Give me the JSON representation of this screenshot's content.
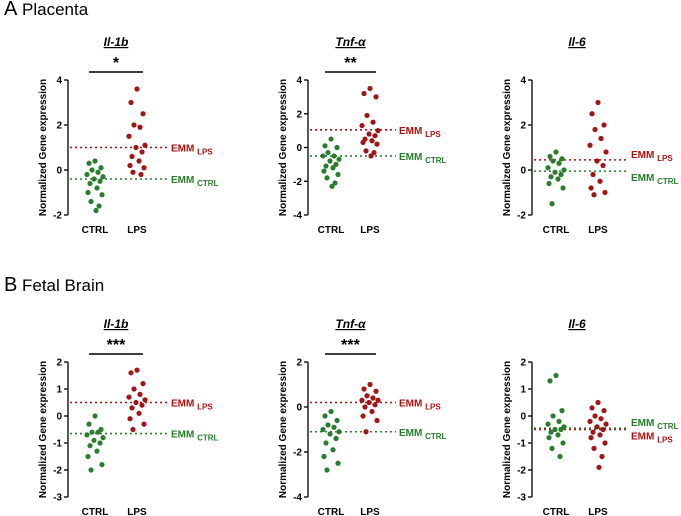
{
  "colors": {
    "ctrl": "#2a7d2e",
    "lps": "#a31515",
    "axis": "#000000"
  },
  "sections": [
    {
      "letter": "A",
      "title": "Placenta"
    },
    {
      "letter": "B",
      "title": "Fetal Brain"
    }
  ],
  "chart_data": [
    {
      "type": "scatter",
      "section": "Placenta",
      "title": "Il-1b",
      "ylabel": "Normalized Gene expression",
      "ylim": [
        -2,
        4
      ],
      "yticks": [
        -2,
        0,
        2,
        4
      ],
      "categories": [
        "CTRL",
        "LPS"
      ],
      "significance": "*",
      "emm": [
        {
          "label": "EMM",
          "sub": "LPS",
          "value": 1.0,
          "group": "lps"
        },
        {
          "label": "EMM",
          "sub": "CTRL",
          "value": -0.4,
          "group": "ctrl"
        }
      ],
      "series": [
        {
          "name": "CTRL",
          "values": [
            0.4,
            0.3,
            0.1,
            0.0,
            -0.1,
            -0.2,
            -0.3,
            -0.4,
            -0.5,
            -0.6,
            -0.8,
            -1.0,
            -1.1,
            -1.4,
            -1.6,
            -1.8
          ]
        },
        {
          "name": "LPS",
          "values": [
            3.6,
            3.0,
            2.5,
            2.0,
            1.9,
            1.5,
            1.1,
            1.0,
            0.8,
            0.6,
            0.4,
            0.2,
            0.1,
            -0.1,
            -0.2
          ]
        }
      ]
    },
    {
      "type": "scatter",
      "section": "Placenta",
      "title": "Tnf-α",
      "ylabel": "Normalized Gene expression",
      "ylim": [
        -4,
        4
      ],
      "yticks": [
        -4,
        -2,
        0,
        2,
        4
      ],
      "categories": [
        "CTRL",
        "LPS"
      ],
      "significance": "**",
      "emm": [
        {
          "label": "EMM",
          "sub": "LPS",
          "value": 1.05,
          "group": "lps"
        },
        {
          "label": "EMM",
          "sub": "CTRL",
          "value": -0.5,
          "group": "ctrl"
        }
      ],
      "series": [
        {
          "name": "CTRL",
          "values": [
            0.5,
            0.1,
            0.0,
            -0.3,
            -0.5,
            -0.5,
            -0.7,
            -0.8,
            -1.0,
            -1.1,
            -1.2,
            -1.4,
            -1.6,
            -1.8,
            -2.1,
            -2.3
          ]
        },
        {
          "name": "LPS",
          "values": [
            3.5,
            3.2,
            3.0,
            1.9,
            1.5,
            1.3,
            1.0,
            0.8,
            0.7,
            0.5,
            0.4,
            0.3,
            0.2,
            -0.2,
            -0.3,
            -0.5
          ]
        }
      ]
    },
    {
      "type": "scatter",
      "section": "Placenta",
      "title": "Il-6",
      "ylabel": "Normalized Gene expression",
      "ylim": [
        -2,
        4
      ],
      "yticks": [
        -2,
        0,
        2,
        4
      ],
      "categories": [
        "CTRL",
        "LPS"
      ],
      "significance": "",
      "emm": [
        {
          "label": "EMM",
          "sub": "LPS",
          "value": 0.45,
          "group": "lps"
        },
        {
          "label": "EMM",
          "sub": "CTRL",
          "value": -0.05,
          "group": "ctrl"
        }
      ],
      "series": [
        {
          "name": "CTRL",
          "values": [
            0.8,
            0.6,
            0.5,
            0.4,
            0.3,
            0.1,
            0.0,
            -0.1,
            -0.2,
            -0.3,
            -0.4,
            -0.6,
            -0.8,
            -1.5
          ]
        },
        {
          "name": "LPS",
          "values": [
            3.0,
            2.5,
            2.0,
            1.8,
            1.4,
            1.1,
            0.8,
            0.4,
            0.2,
            -0.2,
            -0.5,
            -0.8,
            -1.0,
            -1.1
          ]
        }
      ]
    },
    {
      "type": "scatter",
      "section": "Fetal Brain",
      "title": "Il-1b",
      "ylabel": "Normalized Gene expression",
      "ylim": [
        -3,
        2
      ],
      "yticks": [
        -3,
        -2,
        -1,
        0,
        1,
        2
      ],
      "categories": [
        "CTRL",
        "LPS"
      ],
      "significance": "***",
      "emm": [
        {
          "label": "EMM",
          "sub": "LPS",
          "value": 0.5,
          "group": "lps"
        },
        {
          "label": "EMM",
          "sub": "CTRL",
          "value": -0.65,
          "group": "ctrl"
        }
      ],
      "series": [
        {
          "name": "CTRL",
          "values": [
            0.0,
            -0.3,
            -0.5,
            -0.6,
            -0.6,
            -0.7,
            -0.8,
            -0.9,
            -1.0,
            -1.1,
            -1.3,
            -1.5,
            -1.8,
            -2.0
          ]
        },
        {
          "name": "LPS",
          "values": [
            1.7,
            1.6,
            1.2,
            1.0,
            0.8,
            0.7,
            0.6,
            0.5,
            0.4,
            0.3,
            0.1,
            -0.1,
            -0.3,
            -0.5
          ]
        }
      ]
    },
    {
      "type": "scatter",
      "section": "Fetal Brain",
      "title": "Tnf-α",
      "ylabel": "Normalized Gene expression",
      "ylim": [
        -4,
        2
      ],
      "yticks": [
        -4,
        -2,
        0,
        2
      ],
      "categories": [
        "CTRL",
        "LPS"
      ],
      "significance": "***",
      "emm": [
        {
          "label": "EMM",
          "sub": "LPS",
          "value": 0.2,
          "group": "lps"
        },
        {
          "label": "EMM",
          "sub": "CTRL",
          "value": -1.1,
          "group": "ctrl"
        }
      ],
      "series": [
        {
          "name": "CTRL",
          "values": [
            -0.2,
            -0.4,
            -0.6,
            -0.8,
            -0.9,
            -1.0,
            -1.1,
            -1.2,
            -1.4,
            -1.6,
            -1.9,
            -2.2,
            -2.5,
            -2.8
          ]
        },
        {
          "name": "LPS",
          "values": [
            1.0,
            0.8,
            0.7,
            0.5,
            0.4,
            0.3,
            0.3,
            0.2,
            0.1,
            0.0,
            -0.2,
            -0.4,
            -0.6,
            -1.1
          ]
        }
      ]
    },
    {
      "type": "scatter",
      "section": "Fetal Brain",
      "title": "Il-6",
      "ylabel": "Normalized Gene expression",
      "ylim": [
        -3,
        2
      ],
      "yticks": [
        -3,
        -2,
        -1,
        0,
        1,
        2
      ],
      "categories": [
        "CTRL",
        "LPS"
      ],
      "significance": "",
      "emm": [
        {
          "label": "EMM",
          "sub": "CTRL",
          "value": -0.45,
          "group": "ctrl"
        },
        {
          "label": "EMM",
          "sub": "LPS",
          "value": -0.5,
          "group": "lps"
        }
      ],
      "series": [
        {
          "name": "CTRL",
          "values": [
            1.5,
            1.3,
            0.2,
            0.0,
            -0.2,
            -0.3,
            -0.4,
            -0.5,
            -0.5,
            -0.6,
            -0.7,
            -0.8,
            -1.0,
            -1.2,
            -1.5
          ]
        },
        {
          "name": "LPS",
          "values": [
            0.5,
            0.3,
            0.2,
            0.0,
            -0.1,
            -0.2,
            -0.3,
            -0.4,
            -0.5,
            -0.6,
            -0.7,
            -0.8,
            -1.0,
            -1.2,
            -1.5,
            -1.9
          ]
        }
      ]
    }
  ]
}
